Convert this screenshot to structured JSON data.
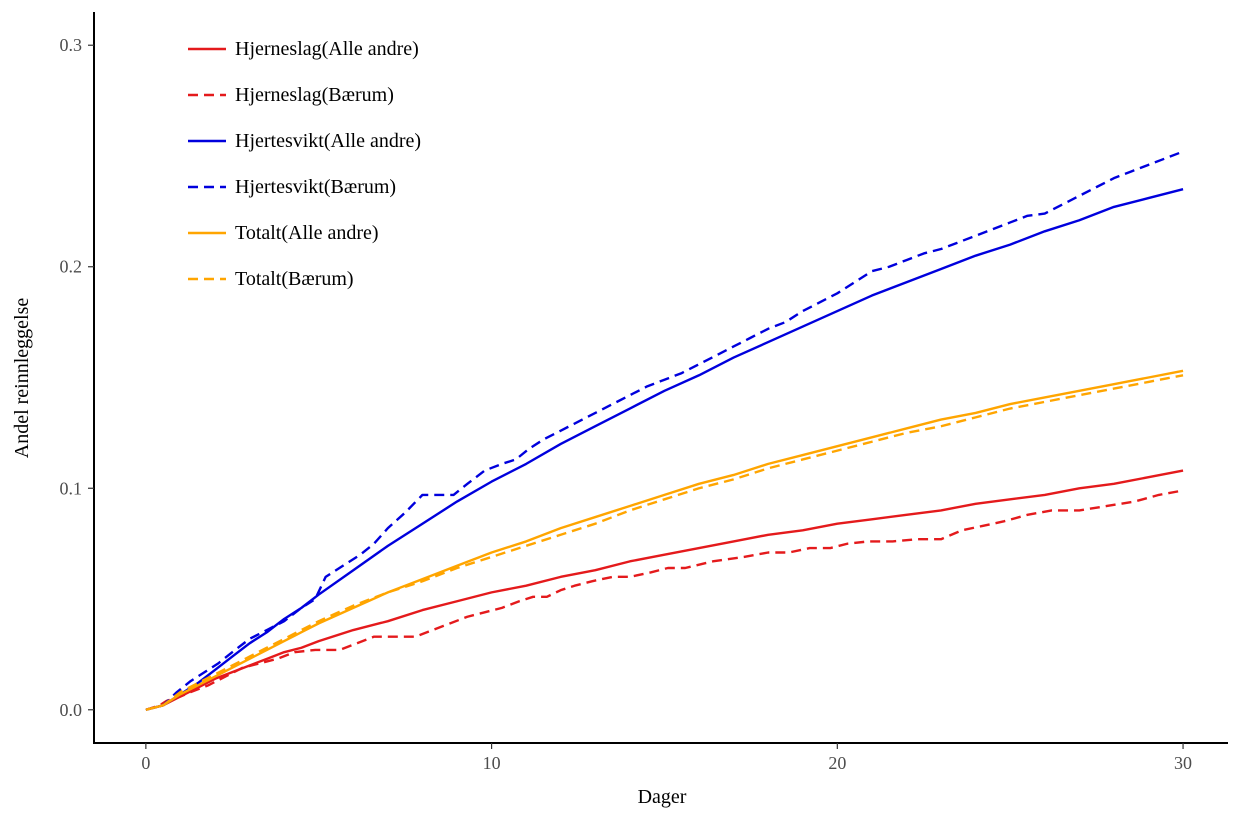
{
  "chart_data": {
    "type": "line",
    "xlabel": "Dager",
    "ylabel": "Andel reinnleggelse",
    "xlim": [
      -1.5,
      31.3
    ],
    "ylim": [
      -0.015,
      0.315
    ],
    "xticks": [
      0,
      10,
      20,
      30
    ],
    "yticks": [
      0.0,
      0.1,
      0.2,
      0.3
    ],
    "ytick_labels": [
      "0.0",
      "0.1",
      "0.2",
      "0.3"
    ],
    "grid": false,
    "legend_position": "top-left",
    "series": [
      {
        "name": "Hjerneslag(Alle andre)",
        "color": "#e41a1c",
        "style": "solid",
        "x": [
          0,
          0.5,
          1,
          1.5,
          2,
          2.5,
          3,
          3.5,
          4,
          4.5,
          5,
          6,
          7,
          8,
          9,
          10,
          11,
          12,
          13,
          14,
          15,
          16,
          17,
          18,
          19,
          20,
          21,
          22,
          23,
          24,
          25,
          26,
          27,
          28,
          29,
          30
        ],
        "y": [
          0,
          0.002,
          0.006,
          0.01,
          0.014,
          0.017,
          0.02,
          0.023,
          0.026,
          0.028,
          0.031,
          0.036,
          0.04,
          0.045,
          0.049,
          0.053,
          0.056,
          0.06,
          0.063,
          0.067,
          0.07,
          0.073,
          0.076,
          0.079,
          0.081,
          0.084,
          0.086,
          0.088,
          0.09,
          0.093,
          0.095,
          0.097,
          0.1,
          0.102,
          0.105,
          0.108
        ]
      },
      {
        "name": "Hjerneslag(Bærum)",
        "color": "#e41a1c",
        "style": "dashed",
        "x": [
          0,
          0.4,
          0.6,
          1.0,
          1.3,
          1.8,
          2.3,
          2.8,
          3.3,
          3.8,
          4.3,
          4.9,
          5.6,
          6.1,
          6.6,
          7.2,
          7.8,
          8.3,
          8.8,
          9.3,
          9.8,
          10.3,
          10.8,
          11.2,
          11.6,
          12.0,
          12.4,
          12.9,
          13.5,
          14.0,
          14.6,
          15.1,
          15.6,
          16.4,
          17.3,
          18.0,
          18.6,
          19.2,
          19.8,
          20.3,
          20.9,
          21.6,
          22.3,
          23.0,
          23.6,
          24.2,
          24.8,
          25.5,
          26.2,
          27.0,
          27.8,
          28.6,
          29.3,
          30.0
        ],
        "y": [
          0,
          0.002,
          0.004,
          0.006,
          0.008,
          0.011,
          0.015,
          0.019,
          0.021,
          0.023,
          0.026,
          0.027,
          0.027,
          0.03,
          0.033,
          0.033,
          0.033,
          0.036,
          0.039,
          0.042,
          0.044,
          0.046,
          0.049,
          0.051,
          0.051,
          0.054,
          0.056,
          0.058,
          0.06,
          0.06,
          0.062,
          0.064,
          0.064,
          0.067,
          0.069,
          0.071,
          0.071,
          0.073,
          0.073,
          0.075,
          0.076,
          0.076,
          0.077,
          0.077,
          0.081,
          0.083,
          0.085,
          0.088,
          0.09,
          0.09,
          0.092,
          0.094,
          0.097,
          0.099
        ]
      },
      {
        "name": "Hjertesvikt(Alle andre)",
        "color": "#0000dd",
        "style": "solid",
        "x": [
          0,
          0.5,
          1,
          1.5,
          2,
          2.5,
          3,
          3.5,
          4,
          4.5,
          5,
          6,
          7,
          8,
          9,
          10,
          11,
          12,
          13,
          14,
          15,
          16,
          17,
          18,
          19,
          20,
          21,
          22,
          23,
          24,
          25,
          26,
          27,
          28,
          29,
          30
        ],
        "y": [
          0,
          0.002,
          0.007,
          0.012,
          0.018,
          0.024,
          0.03,
          0.035,
          0.041,
          0.046,
          0.052,
          0.063,
          0.074,
          0.084,
          0.094,
          0.103,
          0.111,
          0.12,
          0.128,
          0.136,
          0.144,
          0.151,
          0.159,
          0.166,
          0.173,
          0.18,
          0.187,
          0.193,
          0.199,
          0.205,
          0.21,
          0.216,
          0.221,
          0.227,
          0.231,
          0.235
        ]
      },
      {
        "name": "Hjertesvikt(Bærum)",
        "color": "#0000dd",
        "style": "dashed",
        "x": [
          0,
          0.5,
          0.9,
          1.3,
          1.7,
          2.1,
          2.5,
          3.0,
          3.5,
          4.0,
          4.5,
          4.9,
          5.2,
          5.7,
          6.2,
          6.6,
          7.0,
          7.5,
          8.0,
          8.5,
          8.9,
          9.3,
          9.8,
          10.3,
          10.7,
          11.1,
          11.5,
          12.0,
          12.5,
          13.0,
          13.5,
          14.0,
          14.5,
          15.0,
          15.5,
          16.0,
          16.5,
          17.0,
          17.5,
          18.0,
          18.5,
          19.0,
          19.5,
          20.0,
          20.5,
          21.0,
          21.5,
          22.0,
          22.5,
          23.0,
          23.5,
          24.0,
          24.5,
          25.0,
          25.5,
          26.0,
          26.5,
          27.0,
          27.5,
          28.0,
          28.5,
          29.0,
          29.5,
          30.0
        ],
        "y": [
          0,
          0.002,
          0.008,
          0.013,
          0.017,
          0.021,
          0.026,
          0.032,
          0.036,
          0.04,
          0.046,
          0.05,
          0.06,
          0.065,
          0.07,
          0.075,
          0.082,
          0.089,
          0.097,
          0.097,
          0.097,
          0.102,
          0.108,
          0.111,
          0.113,
          0.118,
          0.122,
          0.126,
          0.13,
          0.134,
          0.138,
          0.142,
          0.146,
          0.149,
          0.152,
          0.156,
          0.16,
          0.164,
          0.168,
          0.172,
          0.175,
          0.18,
          0.184,
          0.188,
          0.193,
          0.198,
          0.2,
          0.203,
          0.206,
          0.208,
          0.211,
          0.214,
          0.217,
          0.22,
          0.223,
          0.224,
          0.228,
          0.232,
          0.236,
          0.24,
          0.243,
          0.246,
          0.249,
          0.252
        ]
      },
      {
        "name": "Totalt(Alle andre)",
        "color": "#ffa500",
        "style": "solid",
        "x": [
          0,
          0.5,
          1,
          1.5,
          2,
          2.5,
          3,
          3.5,
          4,
          4.5,
          5,
          6,
          7,
          8,
          9,
          10,
          11,
          12,
          13,
          14,
          15,
          16,
          17,
          18,
          19,
          20,
          21,
          22,
          23,
          24,
          25,
          26,
          27,
          28,
          29,
          30
        ],
        "y": [
          0,
          0.002,
          0.007,
          0.011,
          0.015,
          0.019,
          0.023,
          0.027,
          0.031,
          0.035,
          0.039,
          0.046,
          0.053,
          0.059,
          0.065,
          0.071,
          0.076,
          0.082,
          0.087,
          0.092,
          0.097,
          0.102,
          0.106,
          0.111,
          0.115,
          0.119,
          0.123,
          0.127,
          0.131,
          0.134,
          0.138,
          0.141,
          0.144,
          0.147,
          0.15,
          0.153
        ]
      },
      {
        "name": "Totalt(Bærum)",
        "color": "#ffa500",
        "style": "dashed",
        "x": [
          0,
          0.5,
          1,
          1.5,
          2,
          2.5,
          3,
          3.5,
          4,
          4.5,
          5,
          6,
          7,
          8,
          9,
          10,
          11,
          12,
          13,
          14,
          15,
          16,
          17,
          18,
          19,
          20,
          21,
          22,
          23,
          24,
          25,
          26,
          27,
          28,
          29,
          30
        ],
        "y": [
          0,
          0.002,
          0.008,
          0.012,
          0.016,
          0.02,
          0.024,
          0.028,
          0.032,
          0.036,
          0.04,
          0.047,
          0.053,
          0.058,
          0.064,
          0.069,
          0.074,
          0.079,
          0.084,
          0.09,
          0.095,
          0.1,
          0.104,
          0.109,
          0.113,
          0.117,
          0.121,
          0.125,
          0.128,
          0.132,
          0.136,
          0.139,
          0.142,
          0.145,
          0.148,
          0.151
        ]
      }
    ]
  }
}
